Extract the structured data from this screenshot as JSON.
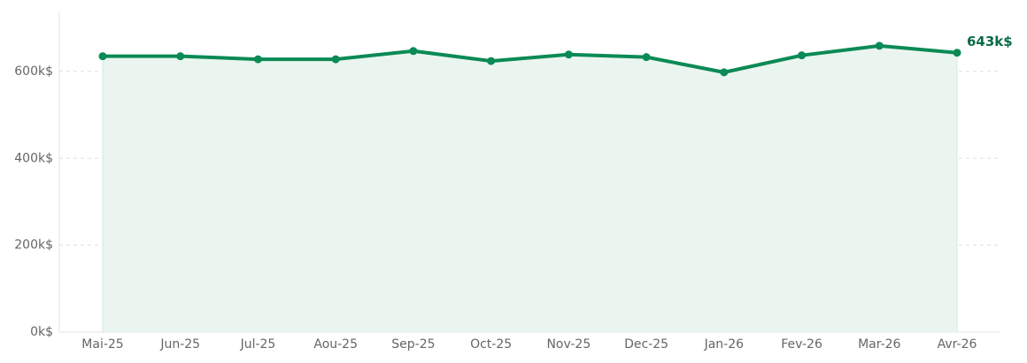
{
  "chart_data": {
    "type": "line",
    "categories": [
      "Mai-25",
      "Jun-25",
      "Jul-25",
      "Aou-25",
      "Sep-25",
      "Oct-25",
      "Nov-25",
      "Dec-25",
      "Jan-26",
      "Fev-26",
      "Mar-26",
      "Avr-26"
    ],
    "values": [
      635,
      635,
      628,
      628,
      647,
      624,
      639,
      633,
      598,
      637,
      659,
      643
    ],
    "value_labels": [
      null,
      null,
      null,
      null,
      null,
      null,
      null,
      null,
      null,
      null,
      null,
      "643k$"
    ],
    "color": "#0a8a55",
    "area_color": "#eaf5f0",
    "label_color": "#0b6b44",
    "ylim": [
      0,
      738
    ],
    "yticks": [
      {
        "value": 0,
        "label": "0k$"
      },
      {
        "value": 200,
        "label": "200k$"
      },
      {
        "value": 400,
        "label": "400k$"
      },
      {
        "value": 600,
        "label": "600k$"
      }
    ],
    "grid": true
  }
}
